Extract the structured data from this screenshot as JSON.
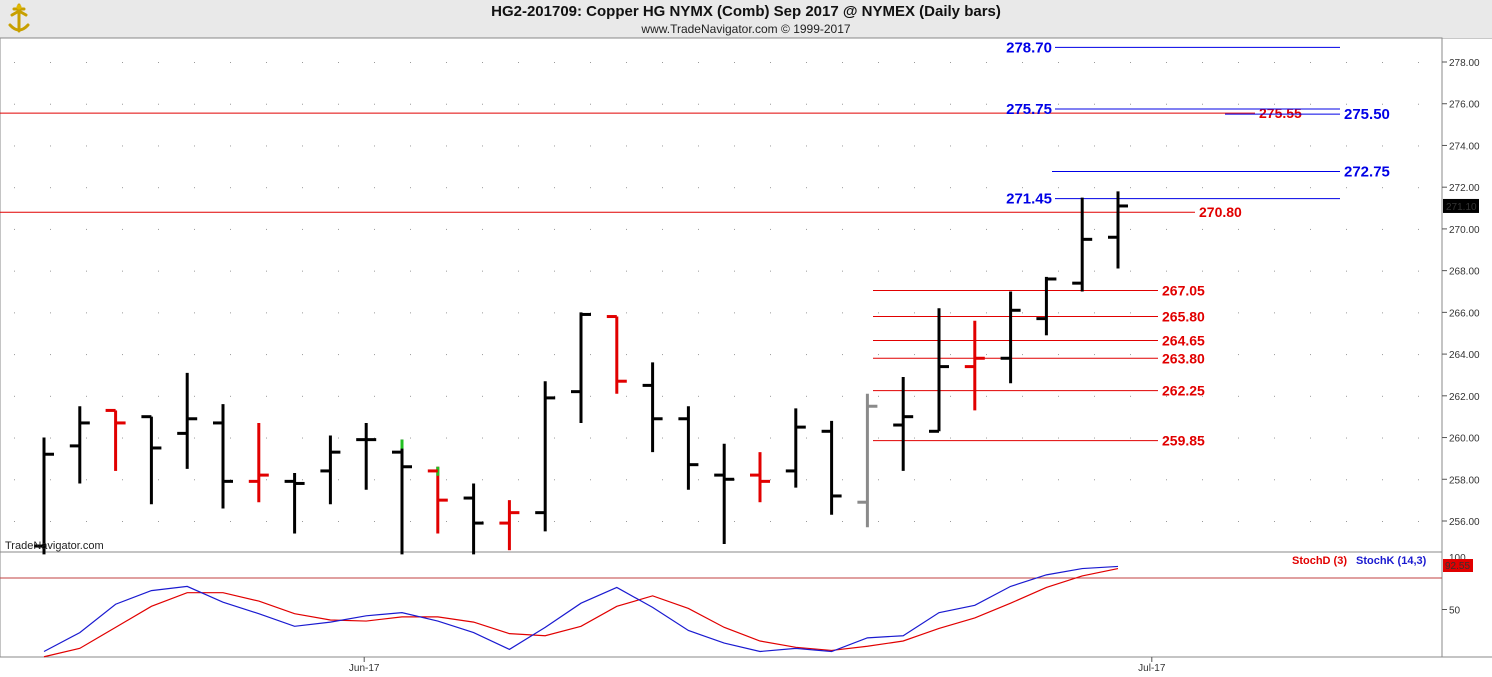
{
  "header": {
    "title": "HG2-201709:  Copper HG NYMX (Comb) Sep 2017 @ NYMEX  (Daily bars)",
    "copyright": "www.TradeNavigator.com © 1999-2017"
  },
  "watermark": "TradeNavigator.com",
  "colors": {
    "up": "#000000",
    "down": "#e10000",
    "red_level": "#e10000",
    "blue_level": "#0000e6",
    "stochD": "#e10000",
    "stochK": "#1a1ad0"
  },
  "chart_data": {
    "type": "ohlc",
    "price_axis": {
      "ylim": [
        254.4,
        279.6
      ],
      "ticks": [
        "256.00",
        "258.00",
        "260.00",
        "262.00",
        "264.00",
        "266.00",
        "268.00",
        "270.00",
        "272.00",
        "274.00",
        "276.00",
        "278.00"
      ]
    },
    "last_price": "271.10",
    "x_labels": [
      {
        "label": "Jun-17",
        "bar": 9
      },
      {
        "label": "Jul-17",
        "bar": 31
      }
    ],
    "bars": [
      {
        "o": 254.8,
        "h": 260.0,
        "l": 254.4,
        "c": 259.2,
        "color": "black"
      },
      {
        "o": 259.6,
        "h": 261.5,
        "l": 257.8,
        "c": 260.7,
        "color": "black"
      },
      {
        "o": 261.3,
        "h": 261.3,
        "l": 258.4,
        "c": 260.7,
        "color": "red"
      },
      {
        "o": 261.0,
        "h": 261.0,
        "l": 256.8,
        "c": 259.5,
        "color": "black"
      },
      {
        "o": 260.2,
        "h": 263.1,
        "l": 258.5,
        "c": 260.9,
        "color": "black"
      },
      {
        "o": 260.7,
        "h": 261.6,
        "l": 256.6,
        "c": 257.9,
        "color": "black"
      },
      {
        "o": 257.9,
        "h": 260.7,
        "l": 256.9,
        "c": 258.2,
        "color": "red"
      },
      {
        "o": 257.9,
        "h": 258.3,
        "l": 255.4,
        "c": 257.8,
        "color": "black"
      },
      {
        "o": 258.4,
        "h": 260.1,
        "l": 256.8,
        "c": 259.3,
        "color": "black"
      },
      {
        "o": 259.9,
        "h": 260.7,
        "l": 257.5,
        "c": 259.9,
        "color": "black"
      },
      {
        "o": 259.3,
        "h": 259.9,
        "l": 254.4,
        "c": 258.6,
        "color": "black",
        "hiColor": "#22c022"
      },
      {
        "o": 258.4,
        "h": 258.6,
        "l": 255.4,
        "c": 257.0,
        "color": "red",
        "hiColor": "#22c022"
      },
      {
        "o": 257.1,
        "h": 257.8,
        "l": 254.4,
        "c": 255.9,
        "color": "black"
      },
      {
        "o": 255.9,
        "h": 257.0,
        "l": 254.6,
        "c": 256.4,
        "color": "red"
      },
      {
        "o": 256.4,
        "h": 262.7,
        "l": 255.5,
        "c": 261.9,
        "color": "black"
      },
      {
        "o": 262.2,
        "h": 266.0,
        "l": 260.7,
        "c": 265.9,
        "color": "black"
      },
      {
        "o": 265.8,
        "h": 265.8,
        "l": 262.1,
        "c": 262.7,
        "color": "red"
      },
      {
        "o": 262.5,
        "h": 263.6,
        "l": 259.3,
        "c": 260.9,
        "color": "black"
      },
      {
        "o": 260.9,
        "h": 261.5,
        "l": 257.5,
        "c": 258.7,
        "color": "black"
      },
      {
        "o": 258.2,
        "h": 259.7,
        "l": 254.9,
        "c": 258.0,
        "color": "black"
      },
      {
        "o": 258.2,
        "h": 259.3,
        "l": 256.9,
        "c": 257.9,
        "color": "red"
      },
      {
        "o": 258.4,
        "h": 261.4,
        "l": 257.6,
        "c": 260.5,
        "color": "black"
      },
      {
        "o": 260.3,
        "h": 260.8,
        "l": 256.3,
        "c": 257.2,
        "color": "black"
      },
      {
        "o": 256.9,
        "h": 262.1,
        "l": 255.7,
        "c": 261.5,
        "color": "gray"
      },
      {
        "o": 260.6,
        "h": 262.9,
        "l": 258.4,
        "c": 261.0,
        "color": "black"
      },
      {
        "o": 260.3,
        "h": 266.2,
        "l": 260.3,
        "c": 263.4,
        "color": "black"
      },
      {
        "o": 263.4,
        "h": 265.6,
        "l": 261.3,
        "c": 263.8,
        "color": "red"
      },
      {
        "o": 263.8,
        "h": 267.0,
        "l": 262.6,
        "c": 266.1,
        "color": "black"
      },
      {
        "o": 265.7,
        "h": 267.7,
        "l": 264.9,
        "c": 267.6,
        "color": "black"
      },
      {
        "o": 267.4,
        "h": 271.5,
        "l": 267.0,
        "c": 269.5,
        "color": "black"
      },
      {
        "o": 269.6,
        "h": 271.8,
        "l": 268.1,
        "c": 271.1,
        "color": "black"
      }
    ],
    "levels": [
      {
        "value": 275.55,
        "label": "275.55",
        "color": "red",
        "x1": 0,
        "x2": 1255,
        "labelSide": "right"
      },
      {
        "value": 270.8,
        "label": "270.80",
        "color": "red",
        "x1": 0,
        "x2": 1195,
        "labelSide": "right"
      },
      {
        "value": 278.7,
        "label": "278.70",
        "color": "blue",
        "x1": 1055,
        "x2": 1340,
        "labelSide": "left"
      },
      {
        "value": 275.75,
        "label": "275.75",
        "color": "blue",
        "x1": 1055,
        "x2": 1340,
        "labelSide": "left"
      },
      {
        "value": 275.5,
        "label": "275.50",
        "color": "blue",
        "x1": 1225,
        "x2": 1340,
        "labelSide": "right"
      },
      {
        "value": 272.75,
        "label": "272.75",
        "color": "blue",
        "x1": 1052,
        "x2": 1340,
        "labelSide": "right"
      },
      {
        "value": 271.45,
        "label": "271.45",
        "color": "blue",
        "x1": 1055,
        "x2": 1340,
        "labelSide": "left"
      },
      {
        "value": 267.05,
        "label": "267.05",
        "color": "red",
        "x1": 873,
        "x2": 1158,
        "labelSide": "right"
      },
      {
        "value": 265.8,
        "label": "265.80",
        "color": "red",
        "x1": 873,
        "x2": 1158,
        "labelSide": "right"
      },
      {
        "value": 264.65,
        "label": "264.65",
        "color": "red",
        "x1": 873,
        "x2": 1158,
        "labelSide": "right"
      },
      {
        "value": 263.8,
        "label": "263.80",
        "color": "red",
        "x1": 873,
        "x2": 1158,
        "labelSide": "right"
      },
      {
        "value": 262.25,
        "label": "262.25",
        "color": "red",
        "x1": 873,
        "x2": 1158,
        "labelSide": "right"
      },
      {
        "value": 259.85,
        "label": "259.85",
        "color": "red",
        "x1": 873,
        "x2": 1158,
        "labelSide": "right"
      }
    ],
    "stochastic": {
      "ylim": [
        0,
        100
      ],
      "ticks": [
        "50"
      ],
      "top_tick": "100",
      "reference": 80,
      "legend": {
        "d": "StochD (3)",
        "k": "StochK (14,3)"
      },
      "last_value": "92.55",
      "k": [
        10,
        28,
        55,
        68,
        72,
        57,
        46,
        34,
        38,
        44,
        47,
        39,
        28,
        12,
        33,
        56,
        71,
        52,
        30,
        18,
        10,
        13,
        10,
        23,
        25,
        47,
        54,
        72,
        83,
        89,
        91
      ],
      "d": [
        5,
        13,
        33,
        53,
        66,
        66,
        58,
        46,
        40,
        39,
        43,
        43,
        38,
        27,
        25,
        34,
        53,
        63,
        51,
        33,
        20,
        14,
        11,
        15,
        20,
        32,
        42,
        56,
        71,
        82,
        89
      ]
    }
  }
}
